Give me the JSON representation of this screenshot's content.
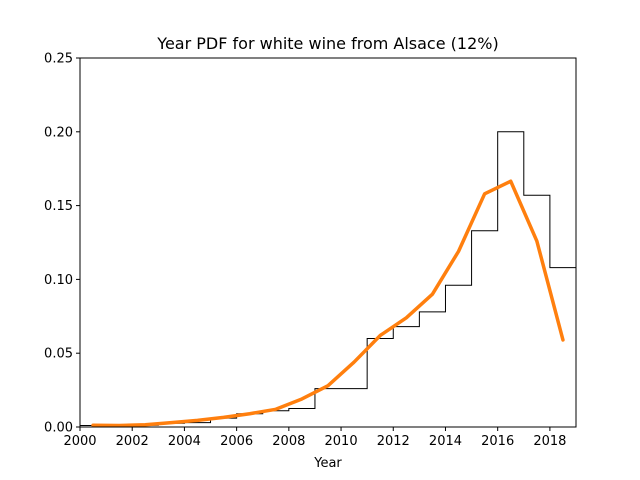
{
  "chart_data": {
    "type": "line",
    "title": "Year PDF for white wine from Alsace (12%)",
    "xlabel": "Year",
    "ylabel": "",
    "xlim": [
      2000,
      2019
    ],
    "ylim": [
      0,
      0.25
    ],
    "x_ticks": [
      "2000",
      "2002",
      "2004",
      "2006",
      "2008",
      "2010",
      "2012",
      "2014",
      "2016",
      "2018"
    ],
    "y_ticks": [
      "0.00",
      "0.05",
      "0.10",
      "0.15",
      "0.20",
      "0.25"
    ],
    "grid": false,
    "series": [
      {
        "kind": "step",
        "color": "#000000",
        "bins": [
          {
            "x0": 2000,
            "x1": 2001,
            "y": 0.001
          },
          {
            "x0": 2001,
            "x1": 2002,
            "y": 0.001
          },
          {
            "x0": 2002,
            "x1": 2003,
            "y": 0.0012
          },
          {
            "x0": 2003,
            "x1": 2004,
            "y": 0.0025
          },
          {
            "x0": 2004,
            "x1": 2005,
            "y": 0.003
          },
          {
            "x0": 2005,
            "x1": 2006,
            "y": 0.006
          },
          {
            "x0": 2006,
            "x1": 2007,
            "y": 0.009
          },
          {
            "x0": 2007,
            "x1": 2008,
            "y": 0.011
          },
          {
            "x0": 2008,
            "x1": 2009,
            "y": 0.0125
          },
          {
            "x0": 2009,
            "x1": 2011,
            "y": 0.026
          },
          {
            "x0": 2011,
            "x1": 2012,
            "y": 0.06
          },
          {
            "x0": 2012,
            "x1": 2013,
            "y": 0.068
          },
          {
            "x0": 2013,
            "x1": 2014,
            "y": 0.078
          },
          {
            "x0": 2014,
            "x1": 2015,
            "y": 0.096
          },
          {
            "x0": 2015,
            "x1": 2016,
            "y": 0.133
          },
          {
            "x0": 2016,
            "x1": 2017,
            "y": 0.2
          },
          {
            "x0": 2017,
            "x1": 2018,
            "y": 0.157
          },
          {
            "x0": 2018,
            "x1": 2019,
            "y": 0.108
          }
        ]
      },
      {
        "kind": "line",
        "color": "#ff7f0e",
        "x": [
          2000.5,
          2001.5,
          2002.5,
          2003.5,
          2004.5,
          2005.5,
          2006.5,
          2007.5,
          2008.5,
          2009.5,
          2010.5,
          2011.5,
          2012.5,
          2013.5,
          2014.5,
          2015.5,
          2016.5,
          2017.5,
          2018.5
        ],
        "values": [
          0.0012,
          0.001,
          0.0015,
          0.003,
          0.0045,
          0.0065,
          0.009,
          0.012,
          0.019,
          0.028,
          0.044,
          0.062,
          0.074,
          0.09,
          0.119,
          0.158,
          0.1665,
          0.126,
          0.059
        ]
      }
    ]
  }
}
